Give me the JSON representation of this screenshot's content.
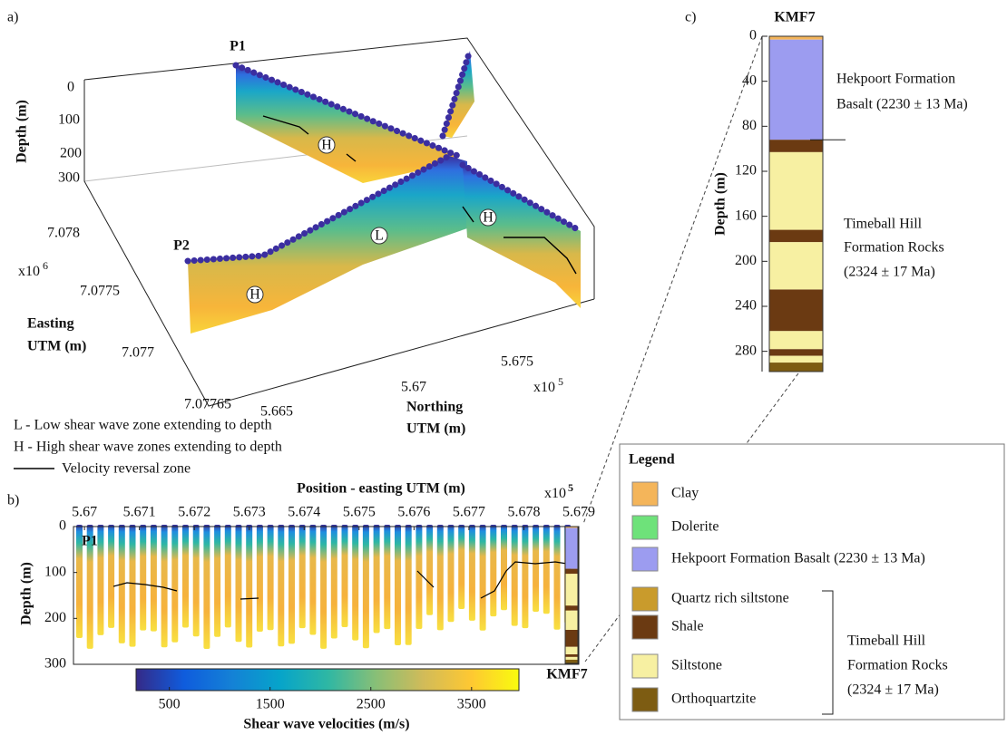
{
  "panel_a": {
    "label": "a)",
    "profile_labels": [
      "P1",
      "P2"
    ],
    "zone_labels": [
      "H",
      "L",
      "H",
      "H"
    ],
    "depth_title": "Depth (m)",
    "depth_ticks": [
      "0",
      "100",
      "200",
      "300"
    ],
    "easting_title": [
      "Easting",
      "UTM (m)"
    ],
    "easting_ticks": [
      "7.078",
      "7.0775",
      "7.077",
      "7.07765"
    ],
    "easting_multiplier": {
      "base": "x10",
      "exponent": "6"
    },
    "northing_title": [
      "Northing",
      "UTM (m)"
    ],
    "northing_ticks": [
      "5.665",
      "5.67",
      "5.675"
    ],
    "northing_multiplier": {
      "base": "x10",
      "exponent": "5"
    },
    "notes": [
      "L - Low shear wave zone extending to depth",
      "H - High shear wave zones extending to depth",
      "Velocity reversal zone"
    ]
  },
  "panel_b": {
    "label": "b)",
    "x_title": "Position - easting UTM (m)",
    "x_multiplier": {
      "base": "x10",
      "exponent": "5"
    },
    "xlim": [
      5.6698,
      5.679
    ],
    "xticks": [
      5.67,
      5.671,
      5.672,
      5.673,
      5.674,
      5.675,
      5.676,
      5.677,
      5.678,
      5.679
    ],
    "y_title": "Depth (m)",
    "ylim": [
      0,
      300
    ],
    "yticks": [
      0,
      100,
      200,
      300
    ],
    "profile_label": "P1",
    "well_label": "KMF7"
  },
  "colorbar": {
    "title": "Shear wave velocities (m/s)",
    "lim": [
      170,
      3970
    ],
    "ticks": [
      500,
      1500,
      2500,
      3500
    ],
    "colormap": [
      "#352a87",
      "#0f5cdd",
      "#1481d6",
      "#06a4ca",
      "#2eb7a4",
      "#87bf77",
      "#d1bb59",
      "#fec832",
      "#f9fb0e"
    ]
  },
  "panel_c": {
    "label": "c)",
    "well": "KMF7",
    "y_title": "Depth (m)",
    "ylim": [
      0,
      298
    ],
    "yticks": [
      0,
      40,
      80,
      120,
      160,
      200,
      240,
      280
    ],
    "notes": [
      [
        "Hekpoort Formation",
        "Basalt (2230 ± 13 Ma)"
      ],
      [
        "Timeball Hill",
        "Formation Rocks",
        "(2324 ± 17 Ma)"
      ]
    ]
  },
  "legend": {
    "title": "Legend",
    "items": [
      {
        "label": "Clay",
        "color": "#f4b55a",
        "intervals": [
          [
            0,
            3
          ]
        ]
      },
      {
        "label": "Dolerite",
        "color": "#6ee27a"
      },
      {
        "label": "Hekpoort Formation Basalt (2230 ± 13 Ma)",
        "color": "#9c9cf0",
        "intervals": [
          [
            3,
            92
          ]
        ]
      },
      {
        "label": "Quartz rich siltstone",
        "color": "#c99b2c"
      },
      {
        "label": "Shale",
        "color": "#6b3a12",
        "intervals": [
          [
            92,
            103
          ],
          [
            172,
            183
          ],
          [
            225,
            262
          ],
          [
            278,
            284
          ]
        ]
      },
      {
        "label": "Siltstone",
        "color": "#f7f0a2",
        "intervals": [
          [
            103,
            172
          ],
          [
            183,
            225
          ],
          [
            262,
            278
          ],
          [
            284,
            290
          ]
        ]
      },
      {
        "label": "Orthoquartzite",
        "color": "#7d5c12",
        "intervals": [
          [
            290,
            298
          ]
        ]
      }
    ],
    "group": [
      "Timeball Hill",
      "Formation Rocks",
      "(2324 ± 17 Ma)"
    ]
  }
}
